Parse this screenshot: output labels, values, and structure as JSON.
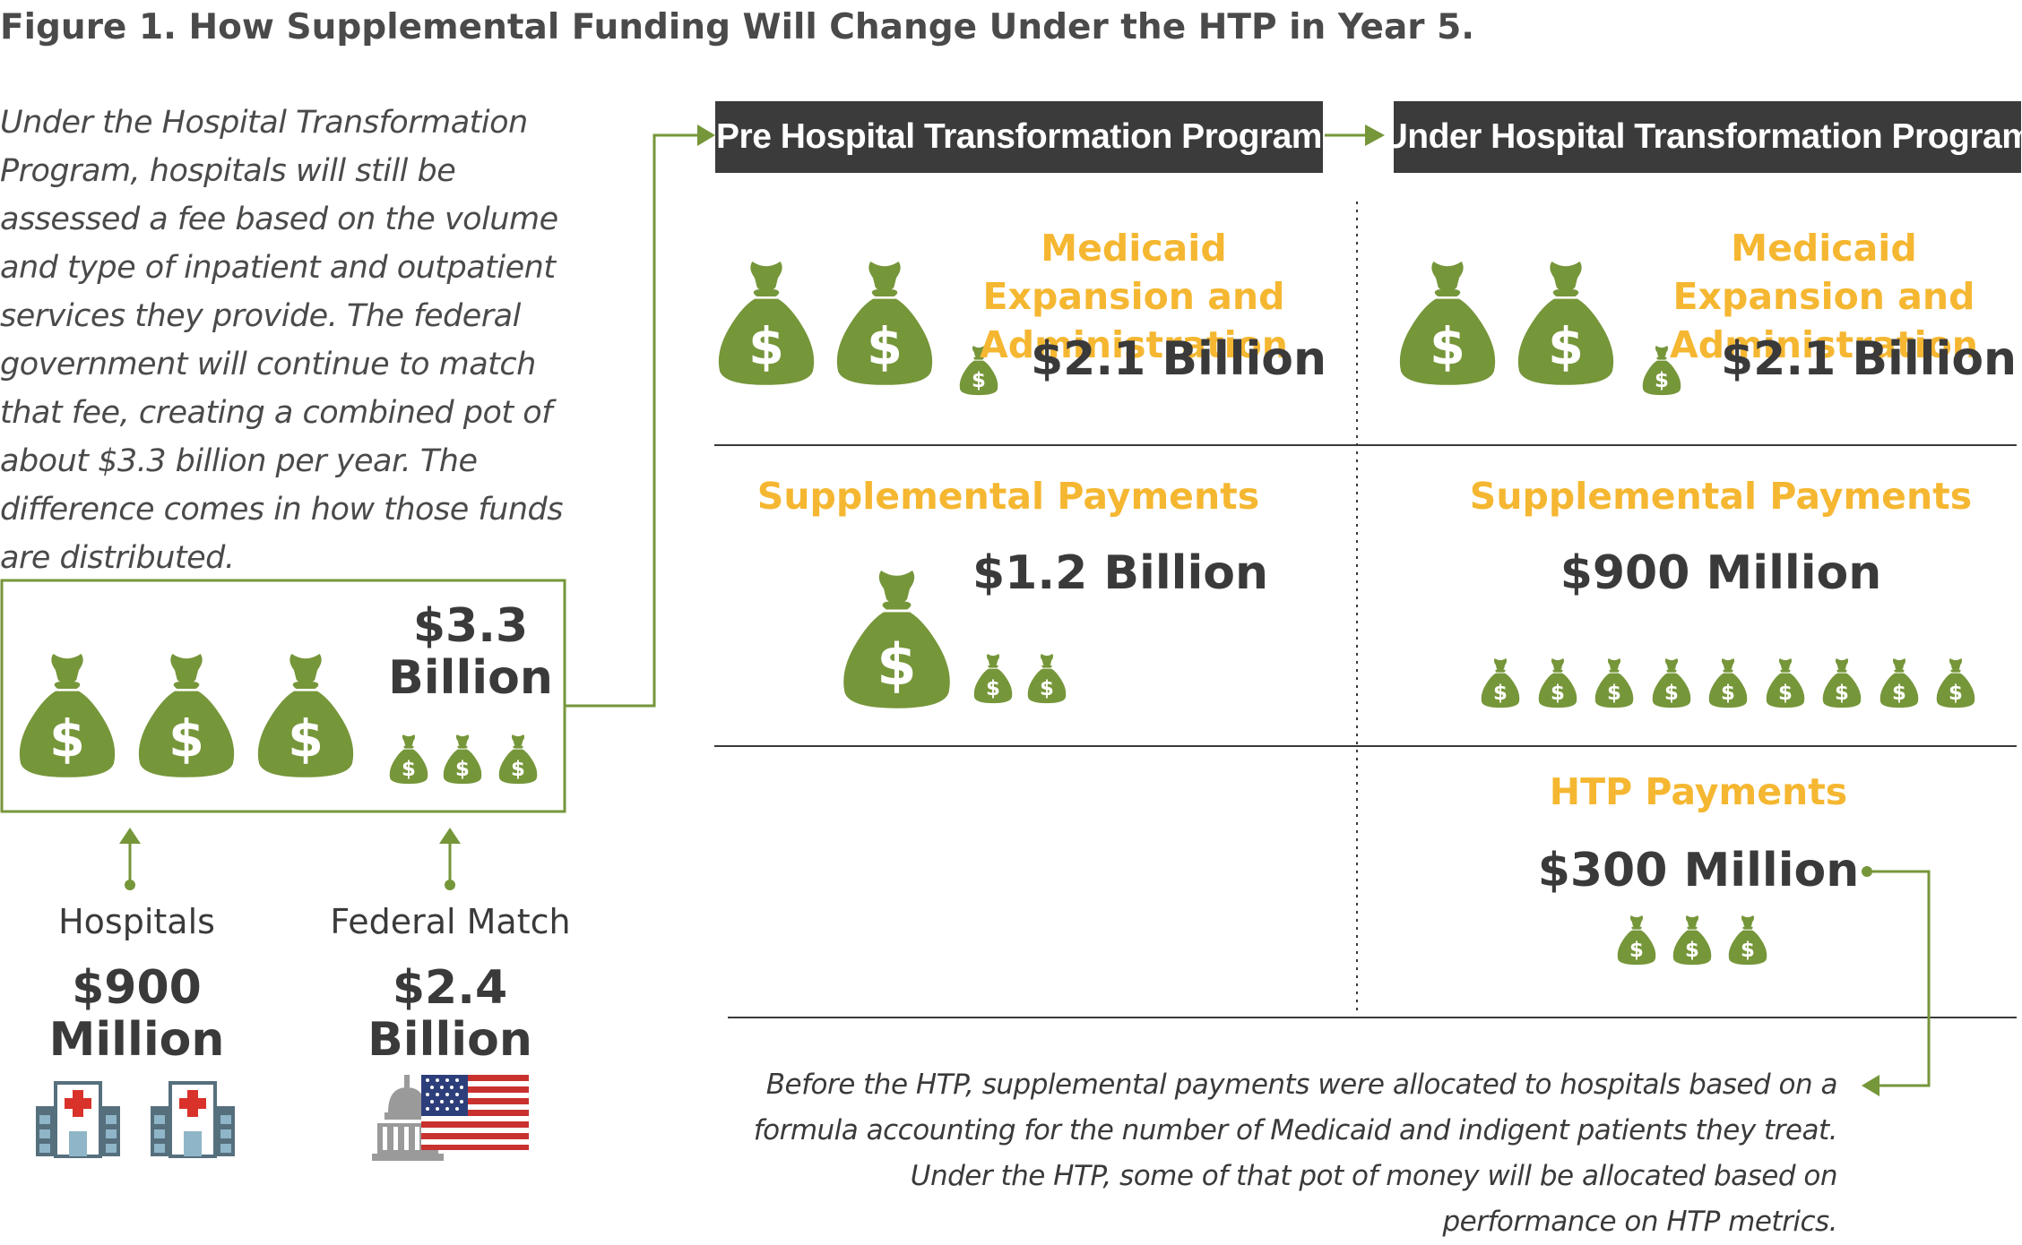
{
  "title": "Figure 1. How Supplemental Funding Will Change Under the HTP in Year 5.",
  "intro": "Under the Hospital Transformation Program, hospitals will still be assessed a fee based on the volume and type of inpatient and outpatient services they provide. The federal government will continue to match that fee, creating a combined pot of about $3.3 billion per year. The difference comes in how those funds are distributed.",
  "total_box": {
    "amount": "$3.3 Billion"
  },
  "sources": {
    "hospitals": {
      "label": "Hospitals",
      "amount": "$900 Million"
    },
    "federal": {
      "label": "Federal Match",
      "amount": "$2.4 Billion"
    }
  },
  "columns": {
    "pre": {
      "header": "Pre Hospital Transformation Program",
      "medicaid": {
        "label": "Medicaid Expansion and Administration",
        "amount": "$2.1 Billion"
      },
      "supplemental": {
        "label": "Supplemental Payments",
        "amount": "$1.2 Billion"
      }
    },
    "under": {
      "header": "Under Hospital Transformation Program",
      "medicaid": {
        "label": "Medicaid Expansion and Administration",
        "amount": "$2.1 Billion"
      },
      "supplemental": {
        "label": "Supplemental Payments",
        "amount": "$900 Million"
      },
      "htp": {
        "label": "HTP Payments",
        "amount": "$300 Million"
      }
    }
  },
  "footnote": "Before the HTP, supplemental payments were allocated to hospitals based on a formula accounting for the number of Medicaid and indigent patients they treat. Under the HTP, some of that pot of money will be allocated based on performance on HTP metrics.",
  "colors": {
    "green": "#76963a",
    "gold": "#f5b731",
    "dark": "#3b3b3b"
  },
  "icons": [
    "money-bag-icon",
    "hospital-icon",
    "capitol-building-icon",
    "us-flag-icon",
    "arrow-right-icon",
    "arrow-up-icon"
  ]
}
